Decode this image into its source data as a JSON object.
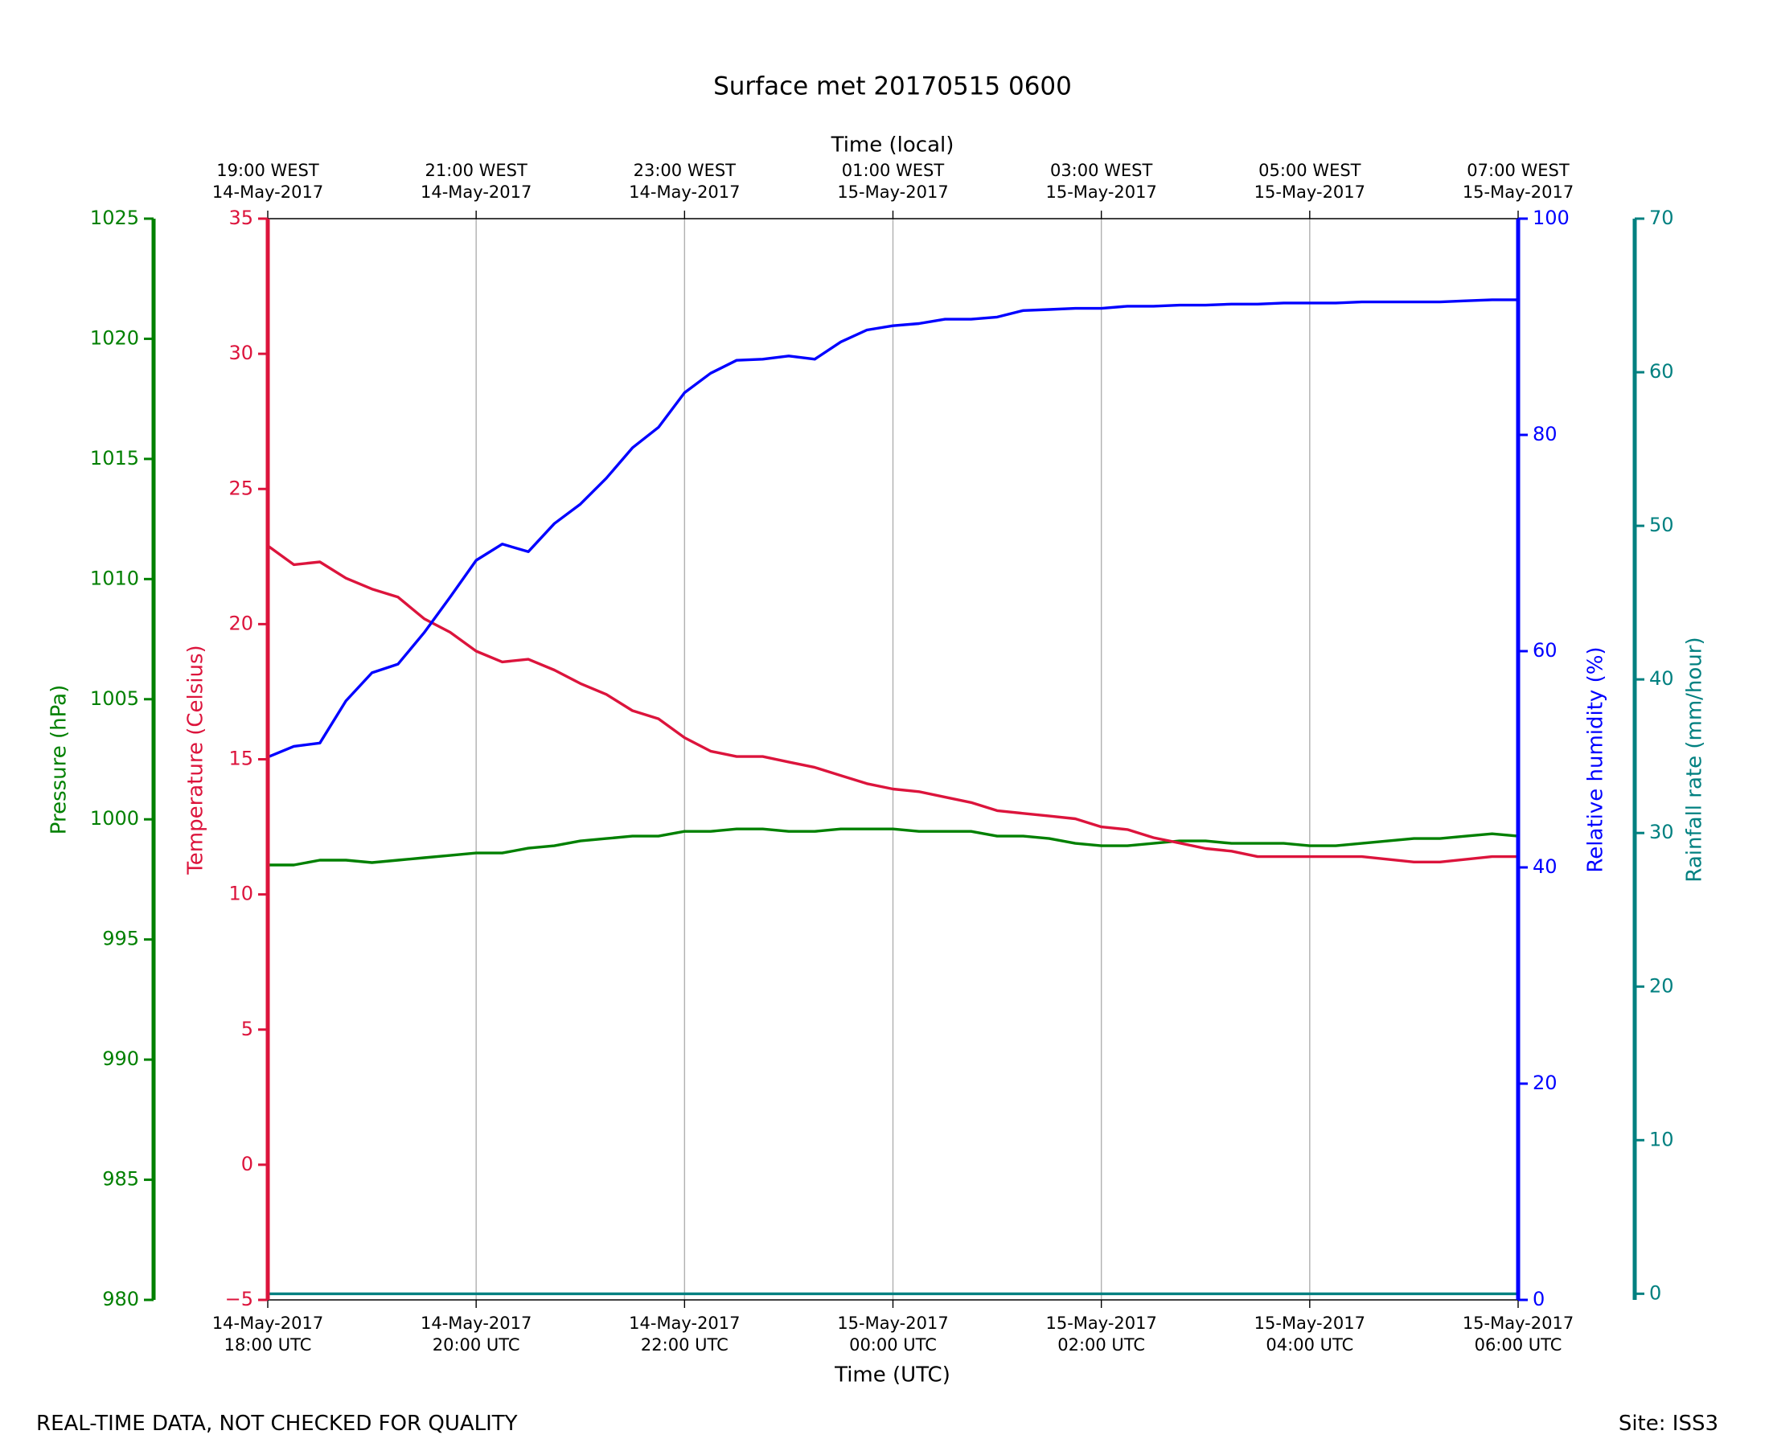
{
  "chart_data": {
    "type": "line",
    "title": "Surface met 20170515 0600",
    "xlabel": "Time (UTC)",
    "x2label": "Time (local)",
    "grid": true,
    "footer_left": "REAL-TIME DATA, NOT CHECKED FOR QUALITY",
    "footer_right": "Site: ISS3",
    "x": [
      "2017-05-14 18:00",
      "2017-05-14 18:15",
      "2017-05-14 18:30",
      "2017-05-14 18:45",
      "2017-05-14 19:00",
      "2017-05-14 19:15",
      "2017-05-14 19:30",
      "2017-05-14 19:45",
      "2017-05-14 20:00",
      "2017-05-14 20:15",
      "2017-05-14 20:30",
      "2017-05-14 20:45",
      "2017-05-14 21:00",
      "2017-05-14 21:15",
      "2017-05-14 21:30",
      "2017-05-14 21:45",
      "2017-05-14 22:00",
      "2017-05-14 22:15",
      "2017-05-14 22:30",
      "2017-05-14 22:45",
      "2017-05-14 23:00",
      "2017-05-14 23:15",
      "2017-05-14 23:30",
      "2017-05-14 23:45",
      "2017-05-15 00:00",
      "2017-05-15 00:15",
      "2017-05-15 00:30",
      "2017-05-15 00:45",
      "2017-05-15 01:00",
      "2017-05-15 01:15",
      "2017-05-15 01:30",
      "2017-05-15 01:45",
      "2017-05-15 02:00",
      "2017-05-15 02:15",
      "2017-05-15 02:30",
      "2017-05-15 02:45",
      "2017-05-15 03:00",
      "2017-05-15 03:15",
      "2017-05-15 03:30",
      "2017-05-15 03:45",
      "2017-05-15 04:00",
      "2017-05-15 04:15",
      "2017-05-15 04:30",
      "2017-05-15 04:45",
      "2017-05-15 05:00",
      "2017-05-15 05:15",
      "2017-05-15 05:30",
      "2017-05-15 05:45",
      "2017-05-15 06:00"
    ],
    "xlim": [
      "2017-05-14 18:00",
      "2017-05-15 06:00"
    ],
    "xticks": [
      {
        "value": "2017-05-14 18:00",
        "label": "14-May-2017\n18:00 UTC"
      },
      {
        "value": "2017-05-14 20:00",
        "label": "14-May-2017\n20:00 UTC"
      },
      {
        "value": "2017-05-14 22:00",
        "label": "14-May-2017\n22:00 UTC"
      },
      {
        "value": "2017-05-15 00:00",
        "label": "15-May-2017\n00:00 UTC"
      },
      {
        "value": "2017-05-15 02:00",
        "label": "15-May-2017\n02:00 UTC"
      },
      {
        "value": "2017-05-15 04:00",
        "label": "15-May-2017\n04:00 UTC"
      },
      {
        "value": "2017-05-15 06:00",
        "label": "15-May-2017\n06:00 UTC"
      }
    ],
    "x2ticks": [
      {
        "value": "2017-05-14 18:00",
        "label": "19:00 WEST\n14-May-2017"
      },
      {
        "value": "2017-05-14 20:00",
        "label": "21:00 WEST\n14-May-2017"
      },
      {
        "value": "2017-05-14 22:00",
        "label": "23:00 WEST\n14-May-2017"
      },
      {
        "value": "2017-05-15 00:00",
        "label": "01:00 WEST\n15-May-2017"
      },
      {
        "value": "2017-05-15 02:00",
        "label": "03:00 WEST\n15-May-2017"
      },
      {
        "value": "2017-05-15 04:00",
        "label": "05:00 WEST\n15-May-2017"
      },
      {
        "value": "2017-05-15 06:00",
        "label": "07:00 WEST\n15-May-2017"
      }
    ],
    "axes": [
      {
        "label": "Pressure (hPa)",
        "position": "left-outer",
        "color": "#008000",
        "ylim": [
          980,
          1025
        ],
        "yticks": [
          980,
          985,
          990,
          995,
          1000,
          1005,
          1010,
          1015,
          1020,
          1025
        ]
      },
      {
        "label": "Temperature (Celsius)",
        "position": "left",
        "color": "#dc143c",
        "ylim": [
          -5,
          35
        ],
        "yticks": [
          {
            "value": -5,
            "label": "−5"
          },
          0,
          5,
          10,
          15,
          20,
          25,
          30,
          35
        ]
      },
      {
        "label": "Relative humidity (%)",
        "position": "right",
        "color": "#0000ff",
        "ylim": [
          0,
          100
        ],
        "yticks": [
          0,
          20,
          40,
          60,
          80,
          100
        ]
      },
      {
        "label": "Rainfall rate (mm/hour)",
        "position": "right-outer",
        "color": "#008080",
        "ylim": [
          -0.4,
          70
        ],
        "yticks": [
          0,
          10,
          20,
          30,
          40,
          50,
          60,
          70
        ]
      }
    ],
    "series": [
      {
        "axis": 0,
        "color": "#008000",
        "values": [
          998.1,
          998.1,
          998.3,
          998.3,
          998.2,
          998.3,
          998.4,
          998.5,
          998.6,
          998.6,
          998.8,
          998.9,
          999.1,
          999.2,
          999.3,
          999.3,
          999.5,
          999.5,
          999.6,
          999.6,
          999.5,
          999.5,
          999.6,
          999.6,
          999.6,
          999.5,
          999.5,
          999.5,
          999.3,
          999.3,
          999.2,
          999.0,
          998.9,
          998.9,
          999.0,
          999.1,
          999.1,
          999.0,
          999.0,
          999.0,
          998.9,
          998.9,
          999.0,
          999.1,
          999.2,
          999.2,
          999.3,
          999.4,
          999.3
        ]
      },
      {
        "axis": 1,
        "color": "#dc143c",
        "values": [
          22.9,
          22.2,
          22.3,
          21.7,
          21.3,
          21.0,
          20.2,
          19.7,
          19.0,
          18.6,
          18.7,
          18.3,
          17.8,
          17.4,
          16.8,
          16.5,
          15.8,
          15.3,
          15.1,
          15.1,
          14.9,
          14.7,
          14.4,
          14.1,
          13.9,
          13.8,
          13.6,
          13.4,
          13.1,
          13.0,
          12.9,
          12.8,
          12.5,
          12.4,
          12.1,
          11.9,
          11.7,
          11.6,
          11.4,
          11.4,
          11.4,
          11.4,
          11.4,
          11.3,
          11.2,
          11.2,
          11.3,
          11.4,
          11.4
        ]
      },
      {
        "axis": 2,
        "color": "#0000ff",
        "values": [
          50.2,
          51.2,
          51.5,
          55.4,
          58.0,
          58.8,
          61.7,
          65.0,
          68.4,
          69.9,
          69.2,
          71.8,
          73.6,
          76.0,
          78.8,
          80.7,
          83.9,
          85.7,
          86.9,
          87.0,
          87.3,
          87.0,
          88.6,
          89.7,
          90.1,
          90.3,
          90.7,
          90.7,
          90.9,
          91.5,
          91.6,
          91.7,
          91.7,
          91.9,
          91.9,
          92.0,
          92.0,
          92.1,
          92.1,
          92.2,
          92.2,
          92.2,
          92.3,
          92.3,
          92.3,
          92.3,
          92.4,
          92.5,
          92.5
        ]
      },
      {
        "axis": 3,
        "color": "#008080",
        "values": [
          0,
          0,
          0,
          0,
          0,
          0,
          0,
          0,
          0,
          0,
          0,
          0,
          0,
          0,
          0,
          0,
          0,
          0,
          0,
          0,
          0,
          0,
          0,
          0,
          0,
          0,
          0,
          0,
          0,
          0,
          0,
          0,
          0,
          0,
          0,
          0,
          0,
          0,
          0,
          0,
          0,
          0,
          0,
          0,
          0,
          0,
          0,
          0,
          0
        ]
      }
    ]
  }
}
